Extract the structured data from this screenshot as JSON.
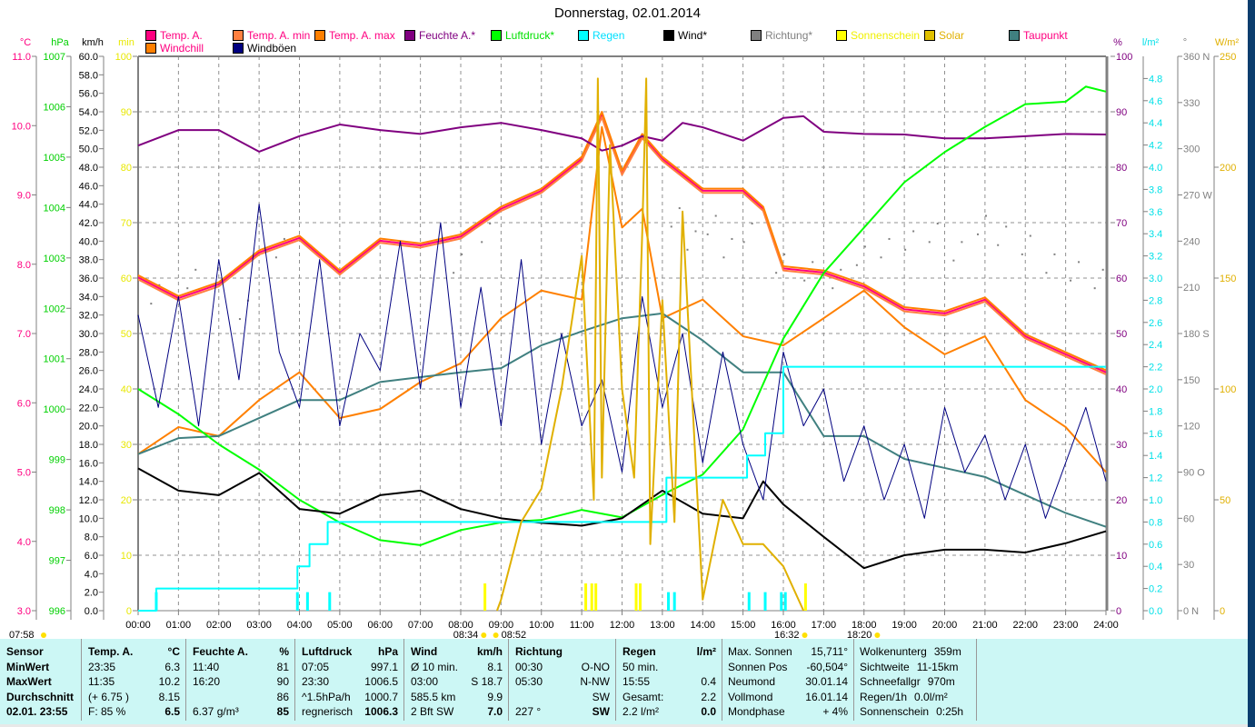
{
  "title": "Donnerstag, 02.01.2014",
  "legend": [
    {
      "label": "Temp. A.",
      "swatch": "#ff0080",
      "text": "#ff0080"
    },
    {
      "label": "Temp. A. min",
      "swatch": "#ff8040",
      "text": "#ff0080"
    },
    {
      "label": "Temp. A. max",
      "swatch": "#ff8000",
      "text": "#ff0080"
    },
    {
      "label": "Feuchte A.*",
      "swatch": "#800080",
      "text": "#800080"
    },
    {
      "label": "Luftdruck*",
      "swatch": "#00ff00",
      "text": "#00e000"
    },
    {
      "label": "Regen",
      "swatch": "#00ffff",
      "text": "#00e0ff"
    },
    {
      "label": "Wind*",
      "swatch": "#000000",
      "text": "#000000"
    },
    {
      "label": "Richtung*",
      "swatch": "#808080",
      "text": "#808080"
    },
    {
      "label": "Sonnenschein",
      "swatch": "#ffff00",
      "text": "#f0f000"
    },
    {
      "label": "Solar",
      "swatch": "#e0c000",
      "text": "#e0b000"
    },
    {
      "label": "Taupunkt",
      "swatch": "#408080",
      "text": "#ff0080"
    },
    {
      "label": "Windchill",
      "swatch": "#ff8000",
      "text": "#ff0080"
    },
    {
      "label": "Windböen",
      "swatch": "#000080",
      "text": "#000000"
    }
  ],
  "chart_data": {
    "type": "line",
    "title": "Donnerstag, 02.01.2014",
    "x_ticks": [
      "00:00",
      "01:00",
      "02:00",
      "03:00",
      "04:00",
      "05:00",
      "06:00",
      "07:00",
      "08:00",
      "09:00",
      "10:00",
      "11:00",
      "12:00",
      "13:00",
      "14:00",
      "15:00",
      "16:00",
      "17:00",
      "18:00",
      "19:00",
      "20:00",
      "21:00",
      "22:00",
      "23:00",
      "24:00"
    ],
    "xlim": [
      0,
      24
    ],
    "grid": true,
    "axes": [
      {
        "id": "temp",
        "unit": "°C",
        "min": 3,
        "max": 11,
        "step": 1,
        "decimals": 1,
        "color": "#ff0080",
        "side": "left"
      },
      {
        "id": "press",
        "unit": "hPa",
        "min": 996,
        "max": 1007,
        "step": 1,
        "decimals": 0,
        "color": "#00d000",
        "side": "left"
      },
      {
        "id": "wind",
        "unit": "km/h",
        "min": 0,
        "max": 60,
        "step": 2,
        "decimals": 1,
        "color": "#000000",
        "side": "left"
      },
      {
        "id": "sun",
        "unit": "min",
        "min": 0,
        "max": 100,
        "step": 10,
        "decimals": 0,
        "color": "#e8e800",
        "side": "left"
      },
      {
        "id": "hum",
        "unit": "%",
        "min": 0,
        "max": 100,
        "step": 10,
        "decimals": 0,
        "color": "#800080",
        "side": "right"
      },
      {
        "id": "rain",
        "unit": "l/m²",
        "min": 0,
        "max": 5,
        "step": 0.2,
        "tick_max": 4.8,
        "decimals": 1,
        "color": "#00e0e8",
        "side": "right"
      },
      {
        "id": "dir",
        "unit": "°",
        "min": 0,
        "max": 360,
        "step": 30,
        "decimals": 0,
        "color": "#808080",
        "side": "right",
        "compass": {
          "0": "N",
          "90": "O",
          "180": "S",
          "270": "W",
          "360": "N"
        }
      },
      {
        "id": "solar",
        "unit": "W/m²",
        "min": 0,
        "max": 250,
        "step": 50,
        "decimals": 0,
        "color": "#e0b000",
        "side": "right"
      }
    ],
    "series": [
      {
        "name": "Temp. A.",
        "axis": "temp",
        "color": "#ff0080",
        "x": [
          0,
          1,
          2,
          3,
          4,
          5,
          6,
          7,
          8,
          9,
          10,
          11,
          11.5,
          12,
          12.5,
          13,
          14,
          15,
          15.5,
          16,
          17,
          18,
          19,
          20,
          21,
          22,
          23,
          24
        ],
        "y": [
          7.81,
          7.51,
          7.71,
          8.17,
          8.38,
          7.88,
          8.34,
          8.27,
          8.4,
          8.8,
          9.06,
          9.52,
          10.17,
          9.32,
          9.85,
          9.52,
          9.06,
          9.06,
          8.8,
          7.94,
          7.88,
          7.68,
          7.35,
          7.29,
          7.49,
          6.96,
          6.7,
          6.44
        ]
      },
      {
        "name": "Temp. A. min",
        "axis": "temp",
        "color": "#ff8040",
        "x": [
          0,
          1,
          2,
          3,
          4,
          5,
          6,
          7,
          8,
          9,
          10,
          11,
          11.5,
          12,
          12.5,
          13,
          14,
          15,
          15.5,
          16,
          17,
          18,
          19,
          20,
          21,
          22,
          23,
          24
        ],
        "y": [
          7.78,
          7.48,
          7.68,
          8.14,
          8.35,
          7.85,
          8.31,
          8.24,
          8.37,
          8.77,
          9.03,
          9.49,
          10.12,
          9.29,
          9.82,
          9.49,
          9.03,
          9.03,
          8.77,
          7.91,
          7.85,
          7.65,
          7.32,
          7.26,
          7.46,
          6.93,
          6.67,
          6.41
        ]
      },
      {
        "name": "Temp. A. max",
        "axis": "temp",
        "color": "#ff8000",
        "x": [
          0,
          1,
          2,
          3,
          4,
          5,
          6,
          7,
          8,
          9,
          10,
          11,
          11.5,
          12,
          12.5,
          13,
          14,
          15,
          15.5,
          16,
          17,
          18,
          19,
          20,
          21,
          22,
          23,
          24
        ],
        "y": [
          7.84,
          7.54,
          7.74,
          8.2,
          8.41,
          7.91,
          8.37,
          8.3,
          8.43,
          8.83,
          9.09,
          9.55,
          10.2,
          9.35,
          9.88,
          9.55,
          9.09,
          9.09,
          8.83,
          7.97,
          7.91,
          7.71,
          7.38,
          7.32,
          7.52,
          6.99,
          6.73,
          6.47
        ]
      },
      {
        "name": "Windchill",
        "axis": "temp",
        "color": "#ff8000",
        "x": [
          0,
          1,
          2,
          3,
          4,
          5,
          6,
          7,
          8,
          9,
          10,
          11,
          11.5,
          12,
          12.5,
          13,
          14,
          15,
          16,
          17,
          18,
          19,
          20,
          21,
          22,
          23,
          24
        ],
        "y": [
          5.26,
          5.65,
          5.52,
          6.04,
          6.44,
          5.78,
          5.91,
          6.3,
          6.57,
          7.22,
          7.62,
          7.49,
          9.98,
          8.53,
          8.8,
          7.22,
          7.49,
          6.96,
          6.83,
          7.22,
          7.62,
          7.09,
          6.7,
          6.96,
          6.04,
          5.65,
          5.0
        ]
      },
      {
        "name": "Taupunkt",
        "axis": "temp",
        "color": "#408080",
        "x": [
          0,
          1,
          2,
          3,
          4,
          5,
          6,
          7,
          8,
          9,
          10,
          11,
          12,
          13,
          14,
          15,
          16,
          17,
          18,
          19,
          20,
          21,
          22,
          23,
          24
        ],
        "y": [
          5.26,
          5.49,
          5.52,
          5.78,
          6.04,
          6.04,
          6.3,
          6.37,
          6.44,
          6.5,
          6.83,
          7.03,
          7.22,
          7.29,
          6.9,
          6.44,
          6.44,
          5.52,
          5.52,
          5.19,
          5.06,
          4.93,
          4.67,
          4.41,
          4.21
        ]
      },
      {
        "name": "Feuchte A.*",
        "axis": "hum",
        "color": "#800080",
        "x": [
          0,
          1,
          2,
          3,
          4,
          5,
          6,
          7,
          8,
          9,
          10,
          11,
          11.5,
          12,
          12.5,
          13,
          13.5,
          14,
          15,
          16,
          16.5,
          17,
          18,
          19,
          20,
          21,
          22,
          23,
          24
        ],
        "y": [
          83.9,
          86.7,
          86.7,
          82.8,
          85.6,
          87.7,
          86.7,
          86,
          87.2,
          88,
          86.7,
          85.2,
          83,
          83.9,
          85.6,
          84.8,
          88,
          87.2,
          84.8,
          88.9,
          89.2,
          86.4,
          86,
          85.9,
          85.2,
          85.2,
          85.6,
          86,
          85.9
        ]
      },
      {
        "name": "Luftdruck*",
        "axis": "press",
        "color": "#00ff00",
        "x": [
          0,
          1,
          2,
          3,
          4,
          5,
          6,
          7,
          8,
          9,
          10,
          11,
          12,
          13,
          14,
          15,
          16,
          17,
          18,
          19,
          20,
          21,
          22,
          23,
          23.5,
          24
        ],
        "y": [
          1000.4,
          999.9,
          999.3,
          998.8,
          998.2,
          997.75,
          997.4,
          997.3,
          997.6,
          997.75,
          997.8,
          998.0,
          997.85,
          998.3,
          998.7,
          999.6,
          1001.4,
          1002.7,
          1003.6,
          1004.5,
          1005.1,
          1005.6,
          1006.05,
          1006.1,
          1006.4,
          1006.3
        ]
      },
      {
        "name": "Wind*",
        "axis": "wind",
        "color": "#000000",
        "x": [
          0,
          1,
          2,
          3,
          4,
          5,
          6,
          7,
          8,
          9,
          10,
          11,
          12,
          13,
          14,
          15,
          15.5,
          16,
          17,
          18,
          19,
          20,
          21,
          22,
          23,
          24
        ],
        "y": [
          15.4,
          13,
          12.5,
          14.9,
          11,
          10.5,
          12.5,
          13,
          11,
          10,
          9.5,
          9.2,
          10,
          13,
          10.5,
          10,
          14,
          11.5,
          8,
          4.6,
          6,
          6.6,
          6.6,
          6.3,
          7.3,
          8.6
        ]
      },
      {
        "name": "Windböen",
        "axis": "wind",
        "color": "#000080",
        "x": [
          0,
          0.5,
          1,
          1.5,
          2,
          2.5,
          3,
          3.5,
          4,
          4.5,
          5,
          5.5,
          6,
          6.5,
          7,
          7.5,
          8,
          8.5,
          9,
          9.5,
          10,
          10.5,
          11,
          11.5,
          12,
          12.5,
          13,
          13.5,
          14,
          14.5,
          15,
          15.5,
          16,
          16.5,
          17,
          17.5,
          18,
          18.5,
          19,
          19.5,
          20,
          20.5,
          21,
          21.5,
          22,
          22.5,
          23,
          23.5,
          24
        ],
        "y": [
          32,
          22,
          34,
          20,
          38,
          25,
          44,
          28,
          22,
          38,
          20,
          30,
          26,
          40,
          24,
          42,
          22,
          35,
          20,
          38,
          18,
          30,
          20,
          25,
          15,
          34,
          22,
          30,
          16,
          28,
          18,
          12,
          28,
          20,
          24,
          14,
          20,
          12,
          18,
          10,
          22,
          15,
          19,
          12,
          18,
          10,
          16,
          22,
          14
        ]
      },
      {
        "name": "Regen",
        "axis": "rain",
        "color": "#00ffff",
        "step": true,
        "x": [
          0,
          0.45,
          3.95,
          4.25,
          4.7,
          13.1,
          15.1,
          15.55,
          16.0,
          24
        ],
        "y": [
          0,
          0.2,
          0.4,
          0.6,
          0.8,
          1.2,
          1.4,
          1.6,
          2.2,
          2.2
        ]
      },
      {
        "name": "Solar",
        "axis": "solar",
        "color": "#e0b000",
        "x": [
          8.9,
          9,
          9.5,
          10,
          10.5,
          11,
          11.3,
          11.4,
          11.5,
          11.7,
          12,
          12.3,
          12.5,
          12.6,
          12.7,
          13,
          13.3,
          13.5,
          14,
          14.5,
          15,
          15.5,
          16,
          16.5
        ],
        "y": [
          0,
          5,
          40,
          55,
          100,
          160,
          50,
          240,
          60,
          210,
          100,
          60,
          170,
          240,
          30,
          140,
          40,
          180,
          5,
          50,
          30,
          30,
          20,
          0
        ]
      }
    ],
    "direction_points": {
      "axis": "dir",
      "color": "#808080",
      "x": [
        0.3,
        1.2,
        2.5,
        3.4,
        7.8,
        8.5,
        13.2,
        13.6,
        14.1,
        14.5,
        15.0,
        15.8,
        16.5,
        17.2,
        17.8,
        18.4,
        19.0,
        19.6,
        20.2,
        20.8,
        21.3,
        21.9,
        22.5,
        23.1,
        23.7
      ],
      "y": [
        200,
        210,
        190,
        230,
        220,
        240,
        250,
        235,
        245,
        230,
        240,
        220,
        215,
        210,
        225,
        230,
        235,
        240,
        228,
        245,
        238,
        232,
        220,
        215,
        210
      ]
    },
    "sunshine_bars": {
      "axis": "sun",
      "color": "#ffff00",
      "x": [
        8.6,
        11.1,
        11.25,
        11.35,
        12.35,
        12.45,
        16.55
      ],
      "y": [
        5,
        5,
        5,
        5,
        5,
        5,
        5
      ]
    },
    "rain_bars": {
      "axis": "rain",
      "color": "#00ffff",
      "x": [
        0.45,
        3.95,
        4.2,
        4.75,
        13.15,
        13.3,
        15.15,
        15.55,
        15.95,
        16.05
      ],
      "y": [
        0.2,
        0.2,
        0.2,
        0.2,
        0.2,
        0.2,
        0.2,
        0.2,
        0.2,
        0.2
      ]
    },
    "events": [
      {
        "label": "07:58",
        "x": -1
      },
      {
        "label": "08:34",
        "x": 8.57
      },
      {
        "label": "08:52",
        "x": 8.87
      },
      {
        "label": "16:32",
        "x": 16.53
      },
      {
        "label": "18:20",
        "x": 18.33
      }
    ]
  },
  "table": {
    "cols": [
      {
        "rows": [
          [
            "Sensor",
            ""
          ],
          [
            "MinWert",
            ""
          ],
          [
            "MaxWert",
            ""
          ],
          [
            "Durchschnitt",
            ""
          ],
          [
            "02.01. 23:55",
            ""
          ]
        ],
        "bold_all": true
      },
      {
        "rows": [
          [
            "Temp. A.",
            "°C"
          ],
          [
            "23:35",
            "6.3"
          ],
          [
            "11:35",
            "10.2"
          ],
          [
            "(+ 6.75 )",
            "8.15"
          ],
          [
            "F: 85 %",
            "6.5"
          ]
        ]
      },
      {
        "rows": [
          [
            "Feuchte A.",
            "%"
          ],
          [
            "11:40",
            "81"
          ],
          [
            "16:20",
            "90"
          ],
          [
            "",
            "86"
          ],
          [
            "6.37 g/m³",
            "85"
          ]
        ]
      },
      {
        "rows": [
          [
            "Luftdruck",
            "hPa"
          ],
          [
            "07:05",
            "997.1"
          ],
          [
            "23:30",
            "1006.5"
          ],
          [
            "^1.5hPa/h",
            "1000.7"
          ],
          [
            "regnerisch",
            "1006.3"
          ]
        ]
      },
      {
        "rows": [
          [
            "Wind",
            "km/h"
          ],
          [
            "Ø 10 min.",
            "8.1"
          ],
          [
            "03:00",
            "S 18.7"
          ],
          [
            "585.5 km",
            "9.9"
          ],
          [
            "2 Bft SW",
            "7.0"
          ]
        ]
      },
      {
        "rows": [
          [
            "Richtung",
            ""
          ],
          [
            "00:30",
            "O-NO"
          ],
          [
            "05:30",
            "N-NW"
          ],
          [
            "",
            "SW"
          ],
          [
            "227 °",
            "SW"
          ]
        ]
      },
      {
        "rows": [
          [
            "Regen",
            "l/m²"
          ],
          [
            "50 min.",
            ""
          ],
          [
            "15:55",
            "0.4"
          ],
          [
            "Gesamt:",
            "2.2"
          ],
          [
            "2.2 l/m²",
            "0.0"
          ]
        ]
      },
      {
        "rows": [
          [
            "Max. Sonnen",
            "15,711°"
          ],
          [
            "Sonnen Pos",
            "-60,504°"
          ],
          [
            "Neumond",
            "30.01.14"
          ],
          [
            "Vollmond",
            "16.01.14"
          ],
          [
            "Mondphase",
            "+ 4%"
          ]
        ],
        "plain": true
      },
      {
        "rows": [
          [
            "Wolkenunterg",
            "359m"
          ],
          [
            "Sichtweite",
            "11-15km"
          ],
          [
            "Schneefallgr",
            "970m"
          ],
          [
            "Regen/1h",
            "0.0l/m²"
          ],
          [
            "Sonnenschein",
            "0:25h"
          ]
        ],
        "plain": true
      }
    ]
  }
}
